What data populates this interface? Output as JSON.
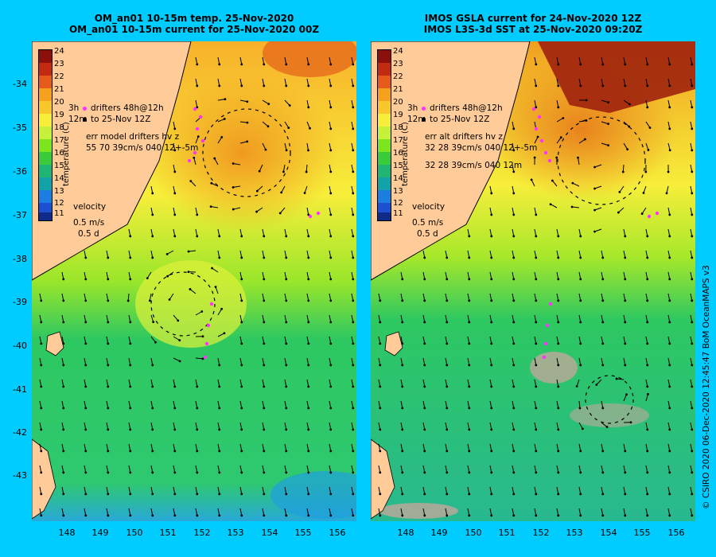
{
  "left_panel": {
    "title_line1": "OM_an01 10-15m temp. 25-Nov-2020",
    "title_line2": "OM_an01 10-15m current for 25-Nov-2020 00Z",
    "legend_drifters": "drifters 48h@12h",
    "legend_to": "to 25-Nov 12Z",
    "legend_label_small_1": "3h",
    "legend_label_small_2": "12m",
    "err_line1": "err model drifters hv z",
    "err_line2": "55 70 39cm/s 040 12+-5m",
    "err_line3": "",
    "velocity_label": "velocity",
    "velocity_scale": "0.5 m/s",
    "velocity_days": "0.5 d"
  },
  "right_panel": {
    "title_line1": "IMOS GSLA current for 24-Nov-2020 12Z",
    "title_line2": "IMOS L3S-3d SST at 25-Nov-2020 09:20Z",
    "legend_drifters": "drifters 48h@12h",
    "legend_to": "to 25-Nov 12Z",
    "legend_label_small_1": "3h",
    "legend_label_small_2": "12m",
    "err_line1": "err alt drifters hv z",
    "err_line2": "32 28 39cm/s 040 12+-5m",
    "err_line3": "32 28 39cm/s 040 12m",
    "velocity_label": "velocity",
    "velocity_scale": "0.5 m/s",
    "velocity_days": "0.5 d"
  },
  "colorbar": {
    "title": "temperature (C)",
    "ticks": [
      "24",
      "23",
      "22",
      "21",
      "20",
      "19",
      "18",
      "17",
      "16",
      "15",
      "14",
      "13",
      "12",
      "11"
    ],
    "colors": [
      "#8b0f0a",
      "#c22a12",
      "#e65a1c",
      "#f5a11d",
      "#f8c72b",
      "#f7ee3a",
      "#c7f03a",
      "#7ce51e",
      "#3acb3a",
      "#21b574",
      "#12a2a8",
      "#1b7ee0",
      "#1d4fd1",
      "#102a8a"
    ]
  },
  "map": {
    "lat_labels": [
      "-34",
      "-35",
      "-36",
      "-37",
      "-38",
      "-39",
      "-40",
      "-41",
      "-42",
      "-43"
    ],
    "lon_labels": [
      "148",
      "149",
      "150",
      "151",
      "152",
      "153",
      "154",
      "155",
      "156"
    ],
    "land_color": "#ffcc99",
    "drifter_color": "#ff33ff",
    "missing_color": "#bfa89a"
  },
  "copyright": "© CSIRO 2020   06-Dec-2020 12:45:47 BoM OceanMAPS v3"
}
